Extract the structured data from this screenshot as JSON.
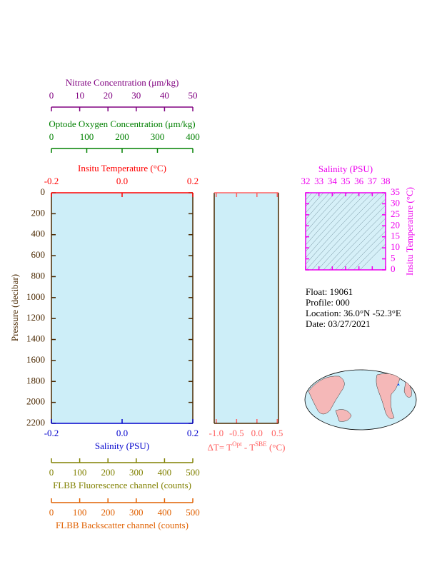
{
  "chart_data": [
    {
      "type": "line",
      "ylabel": "Pressure (decibar)",
      "ylim": [
        0,
        2200
      ],
      "y_inverted": true,
      "yticks": [
        0,
        200,
        400,
        600,
        800,
        1000,
        1200,
        1400,
        1600,
        1800,
        2000,
        2200
      ],
      "axis_color": "#4a2800",
      "top_axes": [
        {
          "label": "Insitu Temperature (°C)",
          "color": "#ff0000",
          "xlim": [
            -0.2,
            0.2
          ],
          "xticks": [
            -0.2,
            {
              "value": 0,
              "label": "0.0"
            },
            0.2
          ]
        },
        {
          "label": "Optode Oxygen Concentration (μm/kg)",
          "color": "#008000",
          "xlim": [
            0,
            400
          ],
          "xticks": [
            0,
            100,
            200,
            300,
            400
          ]
        },
        {
          "label": "Nitrate Concentration (μm/kg)",
          "color": "#800080",
          "xlim": [
            0,
            50
          ],
          "xticks": [
            0,
            10,
            20,
            30,
            40,
            50
          ]
        }
      ],
      "bottom_axes": [
        {
          "label": "Salinity (PSU)",
          "color": "#0000cc",
          "xlim": [
            -0.2,
            0.2
          ],
          "xticks": [
            -0.2,
            {
              "value": 0,
              "label": "0.0"
            },
            0.2
          ]
        },
        {
          "label": "FLBB Fluorescence channel (counts)",
          "color": "#808000",
          "xlim": [
            0,
            500
          ],
          "xticks": [
            0,
            100,
            200,
            300,
            400,
            500
          ]
        },
        {
          "label": "FLBB Backscatter channel (counts)",
          "color": "#e06000",
          "xlim": [
            0,
            500
          ],
          "xticks": [
            0,
            100,
            200,
            300,
            400,
            500
          ]
        }
      ]
    },
    {
      "type": "line",
      "xlabel_parts": [
        "ΔT= T",
        "Opt",
        " - T",
        "SBE",
        " (°C)"
      ],
      "color": "#ff6060",
      "xlim": [
        -1.05,
        0.53
      ],
      "xticks": [
        {
          "value": -1,
          "label": "-1.0"
        },
        {
          "value": -0.5,
          "label": "-0.5"
        },
        {
          "value": 0,
          "label": "0.0"
        },
        0.5
      ]
    },
    {
      "type": "scatter",
      "xlabel": "Salinity (PSU)",
      "ylabel": "Insitu Temperature (°C)",
      "color": "#ee00ee",
      "xlim": [
        32,
        38
      ],
      "xticks": [
        32,
        33,
        34,
        35,
        36,
        37,
        38
      ],
      "ylim": [
        0,
        35
      ],
      "yticks": [
        0,
        5,
        10,
        15,
        20,
        25,
        30,
        35
      ]
    }
  ],
  "float_info": [
    "Float:  19061",
    "Profile:  000",
    "Location:  36.0°N  -52.3°E",
    "Date:  03/27/2021"
  ]
}
